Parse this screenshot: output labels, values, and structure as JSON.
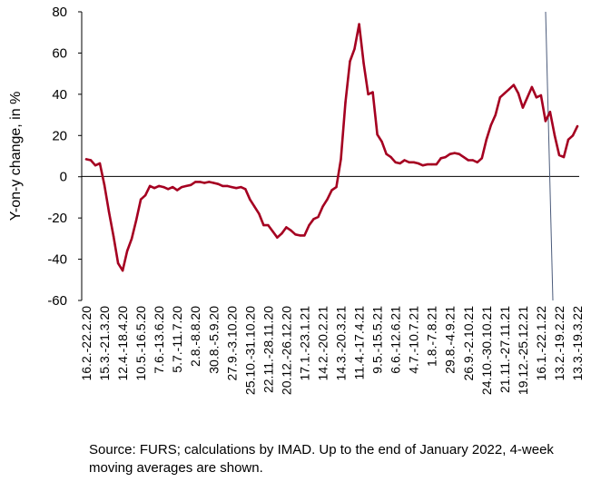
{
  "chart_data": {
    "type": "line",
    "ylabel": "Y-on-y change, in %",
    "ylim": [
      -60,
      80
    ],
    "yticks": [
      -60,
      -40,
      -20,
      0,
      20,
      40,
      60,
      80
    ],
    "grid": false,
    "legend": "none",
    "line_color": "#a50021",
    "marker_line_color": "#4a5a7a",
    "x_tick_labels": [
      "16.2.-22.2.20",
      "15.3.-21.3.20",
      "12.4.-18.4.20",
      "10.5.-16.5.20",
      "7.6.-13.6.20",
      "5.7.-11.7.20",
      "2.8.-8.8.20",
      "30.8.-5.9.20",
      "27.9.-3.10.20",
      "25.10.-31.10.20",
      "22.11.-28.11.20",
      "20.12.-26.12.20",
      "17.1.-23.1.21",
      "14.2.-20.2.21",
      "14.3.-20.3.21",
      "11.4.-17.4.21",
      "9.5.-15.5.21",
      "6.6.-12.6.21",
      "4.7.-10.7.21",
      "1.8.-7.8.21",
      "29.8.-4.9.21",
      "26.9.-2.10.21",
      "24.10.-30.10.21",
      "21.11.-27.11.21",
      "19.12.-25.12.21",
      "16.1.-22.1.22",
      "13.2.-19.2.22",
      "13.3.-19.3.22"
    ],
    "series": [
      {
        "values": [
          8.5,
          8,
          5.5,
          6.5,
          -4,
          -17,
          -29,
          -42,
          -45.5,
          -36,
          -30,
          -21,
          -11,
          -9,
          -4.5,
          -5.5,
          -4.5,
          -5,
          -6,
          -5,
          -6.5,
          -5,
          -4.5,
          -4,
          -2.5,
          -2.5,
          -3,
          -2.5,
          -3,
          -3.5,
          -4.5,
          -4.5,
          -5,
          -5.5,
          -5,
          -6,
          -11,
          -14.5,
          -18,
          -23.5,
          -23.5,
          -26.5,
          -29.5,
          -27.5,
          -24.5,
          -26,
          -28,
          -28.5,
          -28.5,
          -23.5,
          -20.5,
          -19.5,
          -14.5,
          -11,
          -6.5,
          -5,
          8.5,
          36,
          56,
          62,
          74,
          55,
          40,
          41,
          20.5,
          17,
          11,
          9.5,
          7,
          6.5,
          8,
          7,
          7,
          6.5,
          5.5,
          6,
          6,
          6,
          9,
          9.5,
          11,
          11.5,
          11,
          9.5,
          8,
          8,
          7,
          9,
          18,
          25,
          30,
          38.5,
          40.5,
          42.5,
          44.5,
          40.5,
          33.5,
          38.5,
          43.5,
          38.5,
          39.5,
          27,
          31.5,
          20,
          10.5,
          9.5,
          18,
          20,
          24.5
        ]
      }
    ]
  },
  "source_note": "Source: FURS; calculations by IMAD. Up to the end of January 2022, 4-week moving averages are shown."
}
